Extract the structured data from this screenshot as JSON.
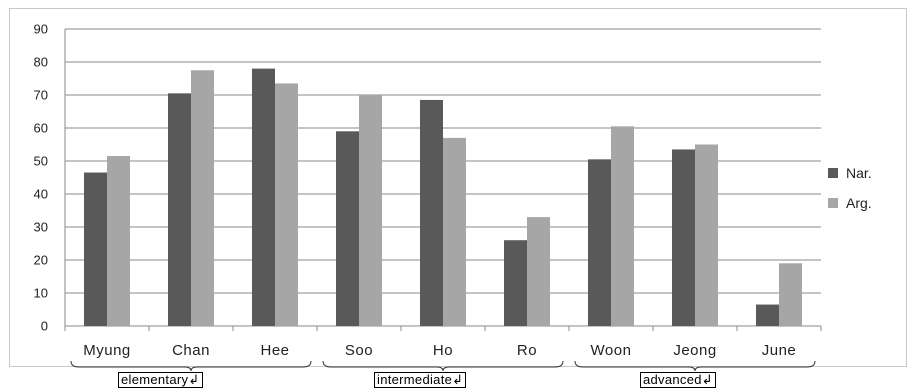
{
  "chart_data": {
    "type": "bar",
    "categories": [
      "Myung",
      "Chan",
      "Hee",
      "Soo",
      "Ho",
      "Ro",
      "Woon",
      "Jeong",
      "June"
    ],
    "series": [
      {
        "name": "Nar.",
        "color": "#595959",
        "values": [
          46.5,
          70.5,
          78,
          59,
          68.5,
          26,
          50.5,
          53.5,
          6.5
        ]
      },
      {
        "name": "Arg.",
        "color": "#a6a6a6",
        "values": [
          51.5,
          77.5,
          73.5,
          70,
          57,
          33,
          60.5,
          55,
          19
        ]
      }
    ],
    "ylim": [
      0,
      90
    ],
    "yticks": [
      "0",
      "10",
      "20",
      "30",
      "40",
      "50",
      "60",
      "70",
      "80",
      "90"
    ],
    "grid": true,
    "legend": "right",
    "groups": [
      {
        "label": "elementary",
        "suffix": "↲"
      },
      {
        "label": "intermediate",
        "suffix": "↲"
      },
      {
        "label": "advanced",
        "suffix": "↲"
      }
    ]
  }
}
